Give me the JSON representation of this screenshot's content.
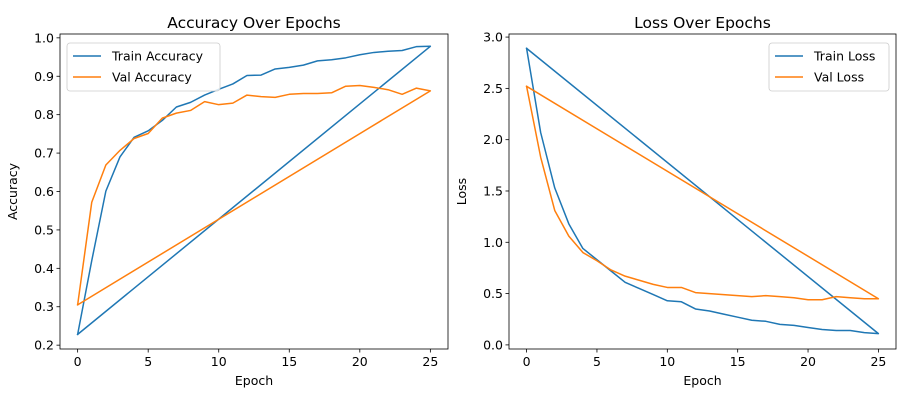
{
  "colors": {
    "train": "#1f77b4",
    "val": "#ff7f0e"
  },
  "chart_data": [
    {
      "type": "line",
      "title": "Accuracy Over Epochs",
      "xlabel": "Epoch",
      "ylabel": "Accuracy",
      "xlim": [
        -1.25,
        26.25
      ],
      "ylim": [
        0.19,
        1.01
      ],
      "xticks": [
        0,
        5,
        10,
        15,
        20,
        25
      ],
      "yticks": [
        0.2,
        0.3,
        0.4,
        0.5,
        0.6,
        0.7,
        0.8,
        0.9,
        1.0
      ],
      "ytick_labels": [
        "0.2",
        "0.3",
        "0.4",
        "0.5",
        "0.6",
        "0.7",
        "0.8",
        "0.9",
        "1.0"
      ],
      "legend_position": "top-left",
      "series": [
        {
          "name": "Train Accuracy",
          "color": "#1f77b4",
          "x": [
            0,
            1,
            2,
            3,
            4,
            5,
            6,
            7,
            8,
            9,
            10,
            11,
            12,
            13,
            14,
            15,
            16,
            17,
            18,
            19,
            20,
            21,
            22,
            23,
            24,
            25,
            0
          ],
          "y": [
            0.228,
            0.42,
            0.601,
            0.69,
            0.741,
            0.758,
            0.785,
            0.82,
            0.832,
            0.851,
            0.866,
            0.88,
            0.902,
            0.903,
            0.919,
            0.923,
            0.929,
            0.94,
            0.943,
            0.948,
            0.956,
            0.962,
            0.965,
            0.967,
            0.977,
            0.978,
            0.228
          ]
        },
        {
          "name": "Val Accuracy",
          "color": "#ff7f0e",
          "x": [
            0,
            1,
            2,
            3,
            4,
            5,
            6,
            7,
            8,
            9,
            10,
            11,
            12,
            13,
            14,
            15,
            16,
            17,
            18,
            19,
            20,
            21,
            22,
            23,
            24,
            25,
            0
          ],
          "y": [
            0.305,
            0.572,
            0.669,
            0.707,
            0.738,
            0.751,
            0.791,
            0.804,
            0.811,
            0.834,
            0.826,
            0.83,
            0.851,
            0.847,
            0.845,
            0.853,
            0.855,
            0.855,
            0.857,
            0.874,
            0.876,
            0.871,
            0.865,
            0.853,
            0.869,
            0.862,
            0.305
          ]
        }
      ]
    },
    {
      "type": "line",
      "title": "Loss Over Epochs",
      "xlabel": "Epoch",
      "ylabel": "Loss",
      "xlim": [
        -1.25,
        26.25
      ],
      "ylim": [
        -0.04,
        3.03
      ],
      "xticks": [
        0,
        5,
        10,
        15,
        20,
        25
      ],
      "yticks": [
        0.0,
        0.5,
        1.0,
        1.5,
        2.0,
        2.5,
        3.0
      ],
      "ytick_labels": [
        "0.0",
        "0.5",
        "1.0",
        "1.5",
        "2.0",
        "2.5",
        "3.0"
      ],
      "legend_position": "top-right",
      "series": [
        {
          "name": "Train Loss",
          "color": "#1f77b4",
          "x": [
            0,
            1,
            2,
            3,
            4,
            5,
            6,
            7,
            8,
            9,
            10,
            11,
            12,
            13,
            14,
            15,
            16,
            17,
            18,
            19,
            20,
            21,
            22,
            23,
            24,
            25,
            0
          ],
          "y": [
            2.89,
            2.07,
            1.53,
            1.18,
            0.94,
            0.83,
            0.72,
            0.61,
            0.55,
            0.49,
            0.43,
            0.42,
            0.35,
            0.33,
            0.3,
            0.27,
            0.24,
            0.23,
            0.2,
            0.19,
            0.17,
            0.15,
            0.14,
            0.14,
            0.12,
            0.11,
            2.89
          ]
        },
        {
          "name": "Val Loss",
          "color": "#ff7f0e",
          "x": [
            0,
            1,
            2,
            3,
            4,
            5,
            6,
            7,
            8,
            9,
            10,
            11,
            12,
            13,
            14,
            15,
            16,
            17,
            18,
            19,
            20,
            21,
            22,
            23,
            24,
            25,
            0
          ],
          "y": [
            2.52,
            1.83,
            1.31,
            1.06,
            0.9,
            0.82,
            0.73,
            0.67,
            0.63,
            0.59,
            0.56,
            0.56,
            0.51,
            0.5,
            0.49,
            0.48,
            0.47,
            0.48,
            0.47,
            0.46,
            0.44,
            0.44,
            0.47,
            0.46,
            0.45,
            0.45,
            2.52
          ]
        }
      ]
    }
  ]
}
